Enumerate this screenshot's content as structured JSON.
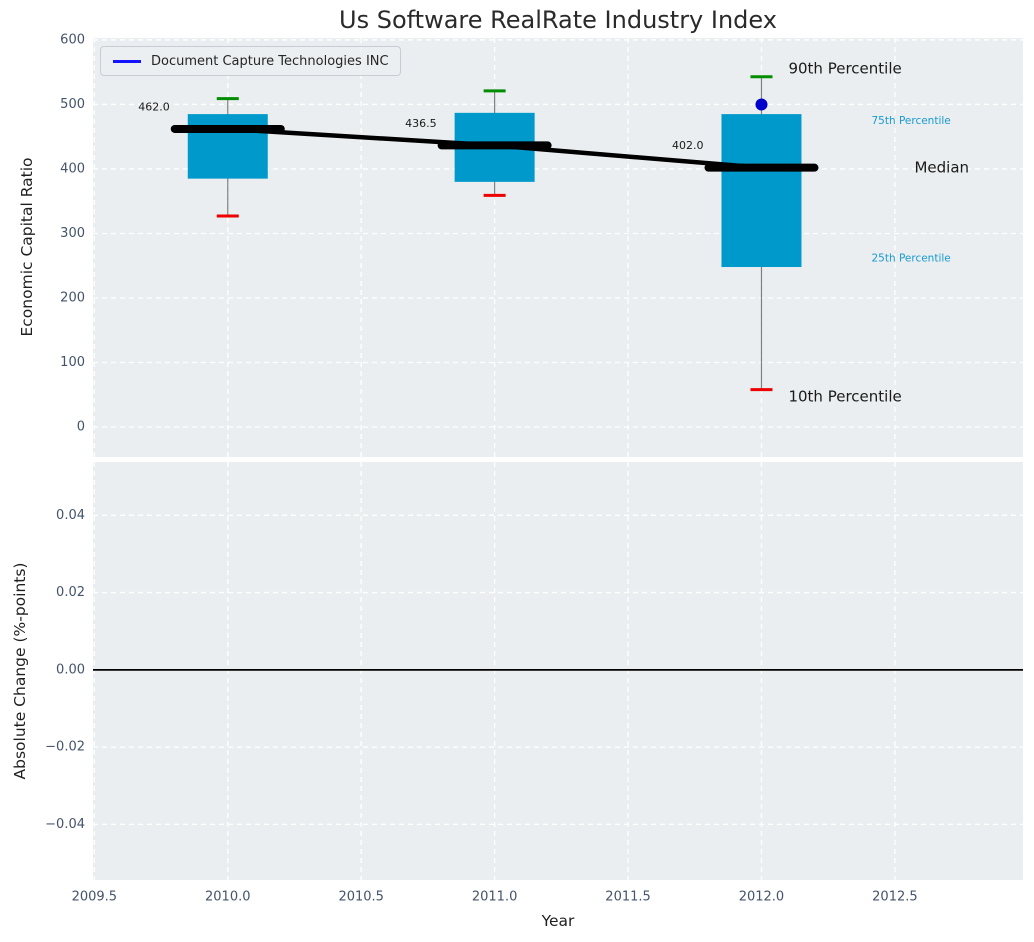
{
  "chart_data": {
    "type": "box",
    "title": "Us Software RealRate Industry Index",
    "xlabel": "Year",
    "grid": true,
    "legend": {
      "label": "Document Capture Technologies INC",
      "line_color": "#1414ff",
      "position": "upper left"
    },
    "x": {
      "ticks": [
        2009.5,
        2010.0,
        2010.5,
        2011.0,
        2011.5,
        2012.0,
        2012.5
      ],
      "tick_labels": [
        "2009.5",
        "2010.0",
        "2010.5",
        "2011.0",
        "2011.5",
        "2012.0",
        "2012.5"
      ],
      "lim": [
        2009.495,
        2012.98
      ]
    },
    "subplots": [
      {
        "ylabel": "Economic Capital Ratio",
        "ylim": [
          -46.5,
          603
        ],
        "yticks": [
          0,
          100,
          200,
          300,
          400,
          500,
          600
        ],
        "ytick_labels": [
          "0",
          "100",
          "200",
          "300",
          "400",
          "500",
          "600"
        ],
        "boxes": [
          {
            "year": 2010,
            "p10": 327,
            "p25": 385,
            "median": 462,
            "p75": 485,
            "p90": 509,
            "median_label": "462.0"
          },
          {
            "year": 2011,
            "p10": 359,
            "p25": 380,
            "median": 436.5,
            "p75": 487,
            "p90": 521,
            "median_label": "436.5"
          },
          {
            "year": 2012,
            "p10": 58,
            "p25": 248,
            "median": 402,
            "p75": 485,
            "p90": 543,
            "median_label": "402.0"
          }
        ],
        "median_trend": [
          [
            2010,
            462
          ],
          [
            2011,
            436.5
          ],
          [
            2012,
            402
          ]
        ],
        "company_points": [
          [
            2012,
            500
          ]
        ],
        "percentile_labels": [
          {
            "role": "p90",
            "text": "90th Percentile",
            "style": "large"
          },
          {
            "role": "p75",
            "text": "75th Percentile",
            "style": "small"
          },
          {
            "role": "median",
            "text": "Median",
            "style": "large"
          },
          {
            "role": "p25",
            "text": "25th Percentile",
            "style": "small"
          },
          {
            "role": "p10",
            "text": "10th Percentile",
            "style": "large"
          }
        ],
        "colors": {
          "box_fill": "#0099cc",
          "whisker": "#7f7f7f",
          "p90_cap": "#008d00",
          "p10_cap": "#ef0000",
          "median": "#000000",
          "company_marker": "#0000cd",
          "percentile_small_label": "#199ad1",
          "percentile_large_label": "#1a1a1a"
        }
      },
      {
        "ylabel": "Absolute Change (%-points)",
        "ylim": [
          -0.0544,
          0.0538
        ],
        "yticks": [
          -0.04,
          -0.02,
          0,
          0.02,
          0.04
        ],
        "ytick_labels": [
          "−0.04",
          "−0.02",
          "0.00",
          "0.02",
          "0.04"
        ],
        "zero_line": 0.0,
        "series": []
      }
    ],
    "style": {
      "plot_bg": "#eaeef0",
      "grid_color": "#ffffff",
      "tick_label_color": "#44546a",
      "title_color": "#2a2a2a",
      "axis_label_color": "#1f1f1f"
    }
  }
}
